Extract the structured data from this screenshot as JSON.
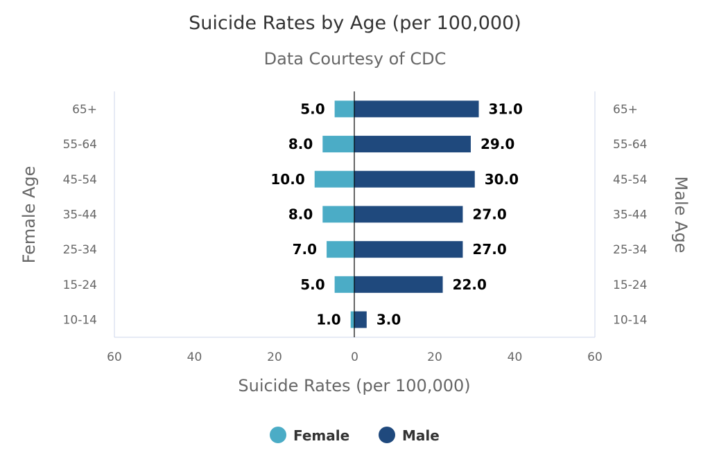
{
  "chart_data": {
    "type": "bar",
    "orientation": "horizontal-population-pyramid",
    "title": "Suicide Rates by Age (per 100,000)",
    "subtitle": "Data Courtesy of CDC",
    "categories": [
      "65+",
      "55-64",
      "45-54",
      "35-44",
      "25-34",
      "15-24",
      "10-14"
    ],
    "series": [
      {
        "name": "Female",
        "color": "#4bacc6",
        "values": [
          5.0,
          8.0,
          10.0,
          8.0,
          7.0,
          5.0,
          1.0
        ],
        "side": "left"
      },
      {
        "name": "Male",
        "color": "#1f497d",
        "values": [
          31.0,
          29.0,
          30.0,
          27.0,
          27.0,
          22.0,
          3.0
        ],
        "side": "right"
      }
    ],
    "xlabel": "Suicide Rates (per 100,000)",
    "ylabel_left": "Female Age",
    "ylabel_right": "Male Age",
    "x_ticks": [
      "60",
      "40",
      "20",
      "0",
      "20",
      "40",
      "60"
    ],
    "xlim": [
      -60,
      60
    ],
    "grid": false,
    "legend": "bottom-center"
  }
}
